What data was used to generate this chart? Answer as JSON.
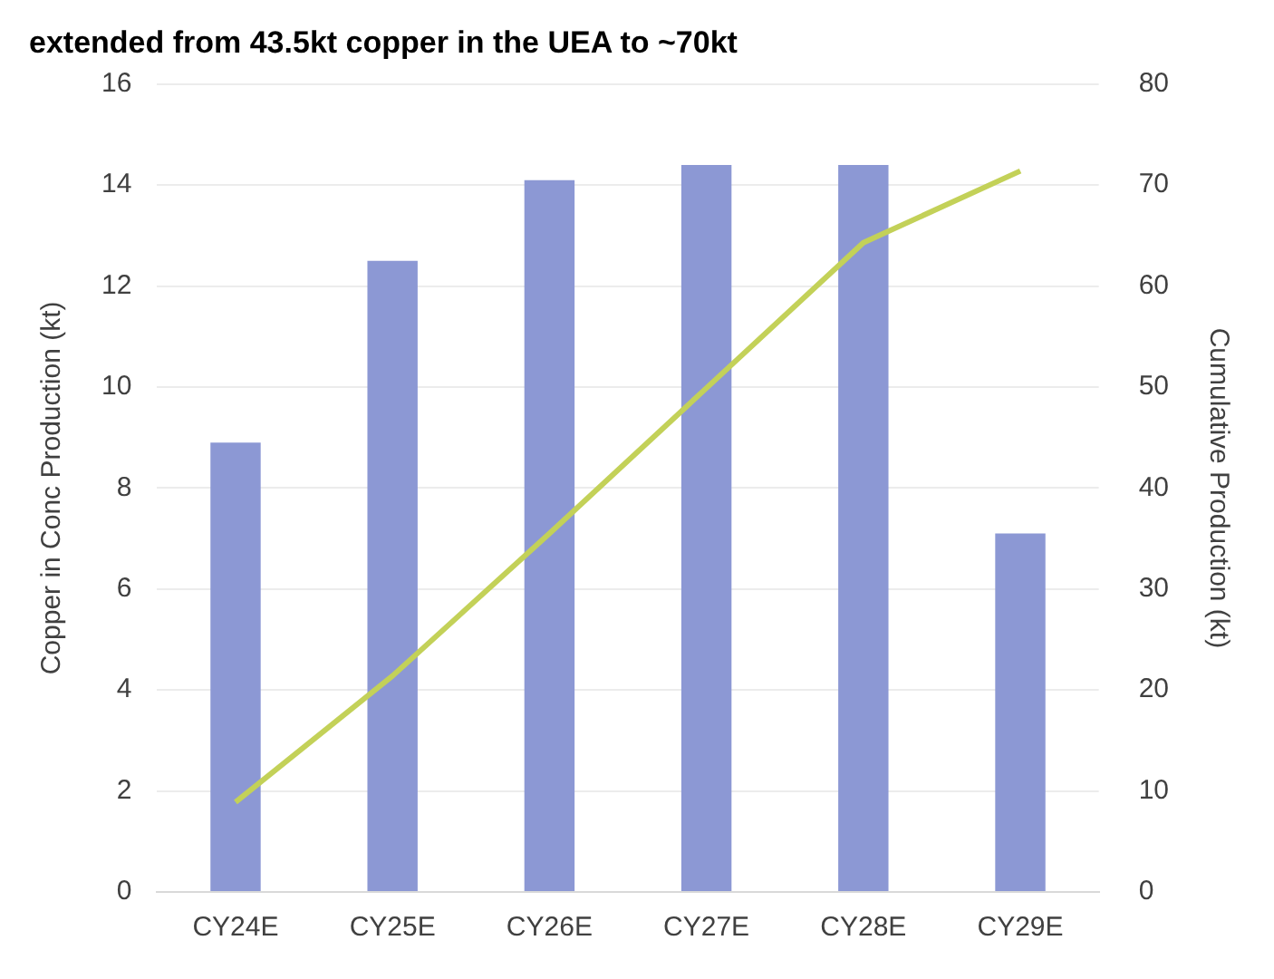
{
  "chart_data": {
    "type": "bar",
    "title": "extended from 43.5kt copper in the UEA to ~70kt",
    "categories": [
      "CY24E",
      "CY25E",
      "CY26E",
      "CY27E",
      "CY28E",
      "CY29E"
    ],
    "series": [
      {
        "color": "#8c98d4",
        "values": [
          8.9,
          12.5,
          14.1,
          14.4,
          14.4,
          7.1
        ]
      },
      {
        "type": "line",
        "axis": "y2",
        "color": "#c3d158",
        "values": [
          8.9,
          21.4,
          35.5,
          49.9,
          64.3,
          71.4
        ]
      }
    ],
    "ylabel": "Copper in Conc Production (kt)",
    "y2label": "Cumulative Production (kt)",
    "ylim": [
      0,
      16
    ],
    "yticks": [
      0,
      2,
      4,
      6,
      8,
      10,
      12,
      14,
      16
    ],
    "y2lim": [
      0,
      80
    ],
    "y2ticks": [
      0,
      10,
      20,
      30,
      40,
      50,
      60,
      70,
      80
    ],
    "grid": "y",
    "legend": false,
    "marker": "none"
  }
}
